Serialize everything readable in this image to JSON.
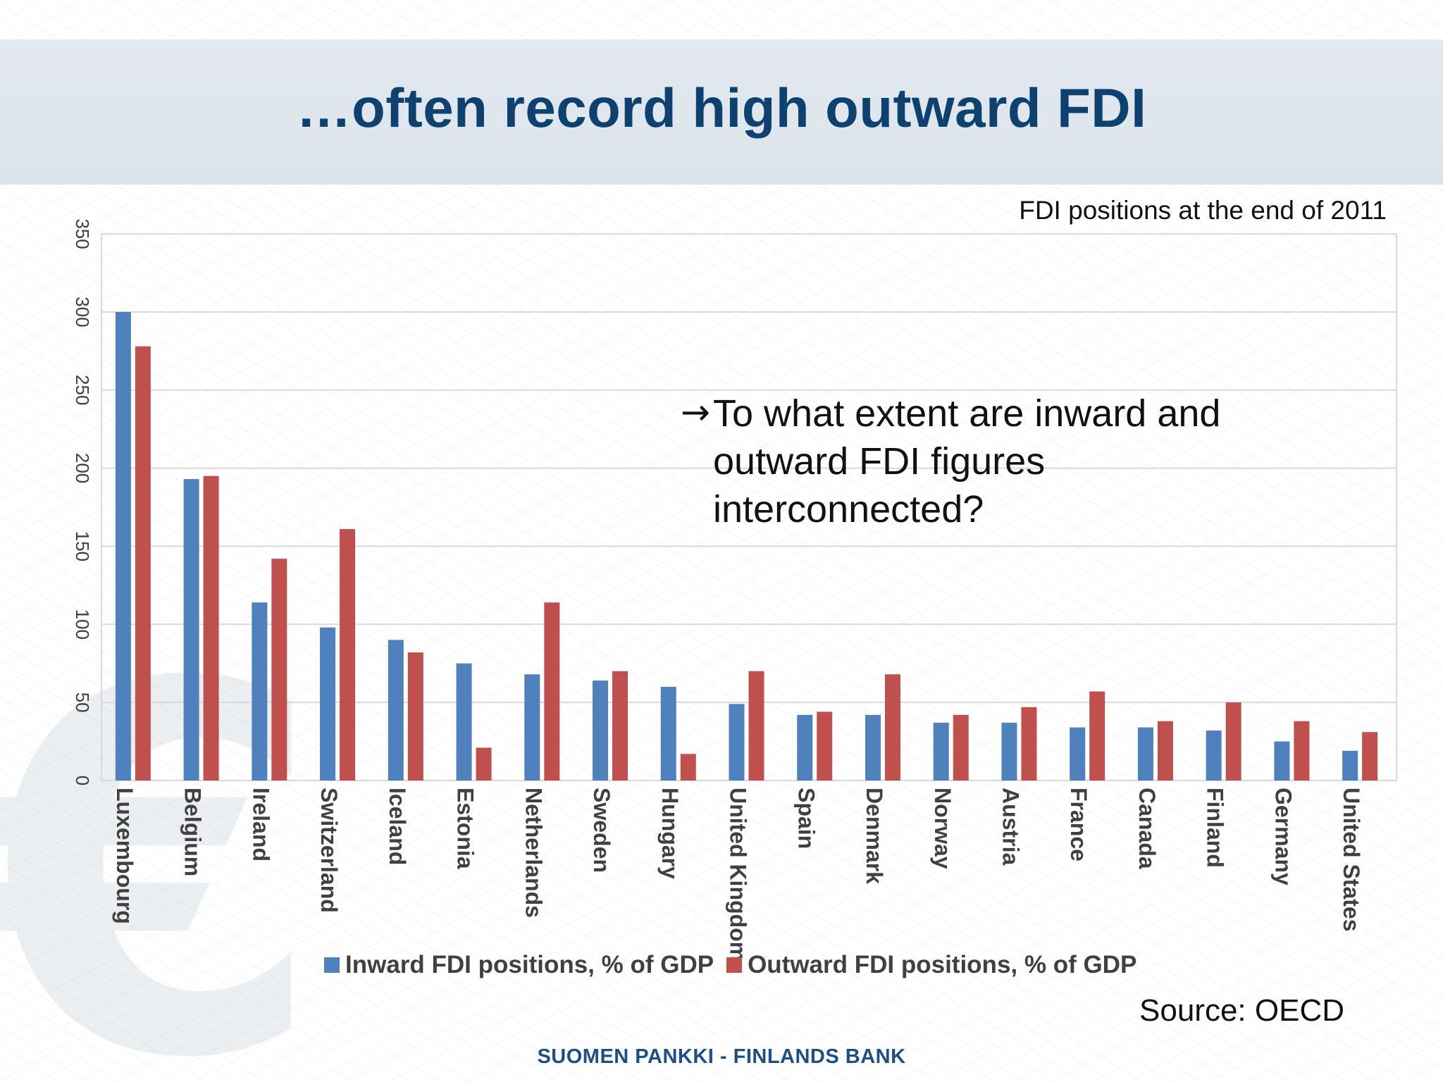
{
  "slide": {
    "title": "…often record high outward FDI",
    "subtitle": "FDI positions at the end of 2011",
    "question_arrow": "→",
    "question_lines": [
      "To what extent are inward and",
      "outward FDI figures",
      "interconnected?"
    ],
    "source": "Source: OECD",
    "footer": "SUOMEN PANKKI - FINLANDS BANK",
    "background_icon": "euro-icon"
  },
  "colors": {
    "title": "#0d4170",
    "inward": "#4f81bd",
    "outward": "#c0504d",
    "gridline": "#d9d9d9",
    "axis_text": "#404040",
    "footer": "#1d4f87"
  },
  "chart_data": {
    "type": "bar",
    "title": "",
    "xlabel": "",
    "ylabel": "",
    "ylim": [
      0,
      350
    ],
    "yticks": [
      0,
      50,
      100,
      150,
      200,
      250,
      300,
      350
    ],
    "ytick_labels": [
      "0",
      "50",
      "100",
      "150",
      "200",
      "250",
      "300",
      "350"
    ],
    "grid": true,
    "legend_position": "bottom",
    "categories": [
      "Luxembourg",
      "Belgium",
      "Ireland",
      "Switzerland",
      "Iceland",
      "Estonia",
      "Netherlands",
      "Sweden",
      "Hungary",
      "United Kingdom",
      "Spain",
      "Denmark",
      "Norway",
      "Austria",
      "France",
      "Canada",
      "Finland",
      "Germany",
      "United States"
    ],
    "series": [
      {
        "name": "Inward FDI positions, % of GDP",
        "values": [
          300,
          193,
          114,
          98,
          90,
          75,
          68,
          64,
          60,
          49,
          42,
          42,
          37,
          37,
          34,
          34,
          32,
          25,
          19
        ]
      },
      {
        "name": "Outward FDI positions, % of GDP",
        "values": [
          278,
          195,
          142,
          161,
          82,
          21,
          114,
          70,
          17,
          70,
          44,
          68,
          42,
          47,
          57,
          38,
          50,
          38,
          31
        ]
      }
    ]
  }
}
